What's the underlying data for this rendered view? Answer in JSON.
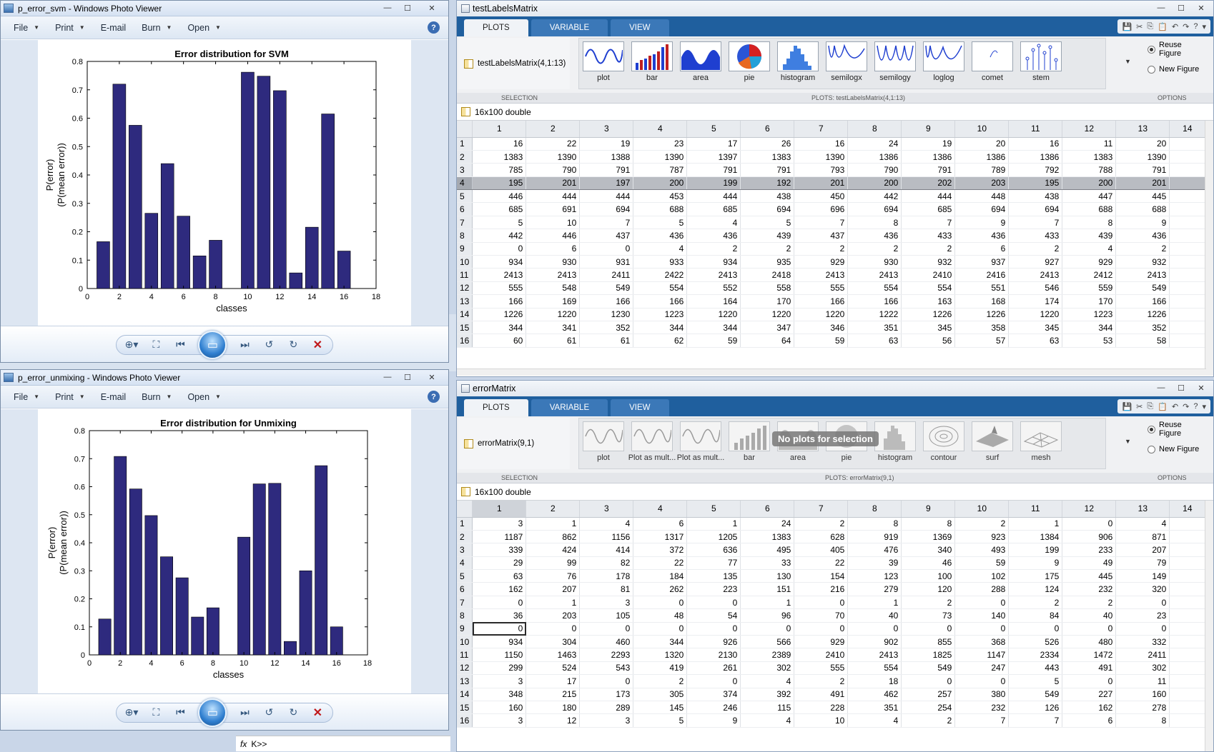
{
  "pv_top": {
    "title": "p_error_svm - Windows Photo Viewer",
    "menu": [
      "File",
      "Print",
      "E-mail",
      "Burn",
      "Open"
    ]
  },
  "pv_bottom": {
    "title": "p_error_unmixing - Windows Photo Viewer",
    "menu": [
      "File",
      "Print",
      "E-mail",
      "Burn",
      "Open"
    ]
  },
  "window_buttons": {
    "min": "—",
    "max": "☐",
    "close": "✕"
  },
  "help_label": "?",
  "chart_data": [
    {
      "type": "bar",
      "title": "Error distribution for SVM",
      "xlabel": "classes",
      "ylabel_line1": "P(error)",
      "ylabel_line2": "(P(mean error))",
      "xlim": [
        0,
        18
      ],
      "ylim": [
        0,
        0.8
      ],
      "xticks": [
        0,
        2,
        4,
        6,
        8,
        10,
        12,
        14,
        16,
        18
      ],
      "yticks": [
        0,
        0.1,
        0.2,
        0.3,
        0.4,
        0.5,
        0.6,
        0.7,
        0.8
      ],
      "x": [
        1,
        2,
        3,
        4,
        5,
        6,
        7,
        8,
        9,
        10,
        11,
        12,
        13,
        14,
        15,
        16
      ],
      "values": [
        0.165,
        0.72,
        0.575,
        0.265,
        0.44,
        0.255,
        0.115,
        0.17,
        0,
        0.762,
        0.748,
        0.697,
        0.055,
        0.216,
        0.615,
        0.132
      ],
      "bar_color": "#2e2a7e"
    },
    {
      "type": "bar",
      "title": "Error distribution for Unmixing",
      "xlabel": "classes",
      "ylabel_line1": "P(error)",
      "ylabel_line2": "(P(mean error))",
      "xlim": [
        0,
        18
      ],
      "ylim": [
        0,
        0.8
      ],
      "xticks": [
        0,
        2,
        4,
        6,
        8,
        10,
        12,
        14,
        16,
        18
      ],
      "yticks": [
        0,
        0.1,
        0.2,
        0.3,
        0.4,
        0.5,
        0.6,
        0.7,
        0.8
      ],
      "x": [
        1,
        2,
        3,
        4,
        5,
        6,
        7,
        8,
        9,
        10,
        11,
        12,
        13,
        14,
        15,
        16
      ],
      "values": [
        0.128,
        0.708,
        0.592,
        0.497,
        0.35,
        0.275,
        0.135,
        0.168,
        0,
        0.42,
        0.61,
        0.612,
        0.048,
        0.3,
        0.675,
        0.1
      ],
      "bar_color": "#2e2a7e"
    }
  ],
  "ml_top": {
    "title": "testLabelsMatrix",
    "tabs": [
      "PLOTS",
      "VARIABLE",
      "VIEW"
    ],
    "selection_text": "testLabelsMatrix(4,1:13)",
    "gallery": [
      "plot",
      "bar",
      "area",
      "pie",
      "histogram",
      "semilogx",
      "semilogy",
      "loglog",
      "comet",
      "stem"
    ],
    "options": [
      "Reuse Figure",
      "New Figure"
    ],
    "strip_labels": {
      "selection": "SELECTION",
      "plots": "PLOTS: testLabelsMatrix(4,1:13)",
      "options": "OPTIONS"
    },
    "size_text": "16x100 double",
    "col_headers": [
      "1",
      "2",
      "3",
      "4",
      "5",
      "6",
      "7",
      "8",
      "9",
      "10",
      "11",
      "12",
      "13",
      "14"
    ],
    "rows": [
      [
        "16",
        "22",
        "19",
        "23",
        "17",
        "26",
        "16",
        "24",
        "19",
        "20",
        "16",
        "11",
        "20",
        ""
      ],
      [
        "1383",
        "1390",
        "1388",
        "1390",
        "1397",
        "1383",
        "1390",
        "1386",
        "1386",
        "1386",
        "1386",
        "1383",
        "1390",
        ""
      ],
      [
        "785",
        "790",
        "791",
        "787",
        "791",
        "791",
        "793",
        "790",
        "791",
        "789",
        "792",
        "788",
        "791",
        ""
      ],
      [
        "195",
        "201",
        "197",
        "200",
        "199",
        "192",
        "201",
        "200",
        "202",
        "203",
        "195",
        "200",
        "201",
        ""
      ],
      [
        "446",
        "444",
        "444",
        "453",
        "444",
        "438",
        "450",
        "442",
        "444",
        "448",
        "438",
        "447",
        "445",
        ""
      ],
      [
        "685",
        "691",
        "694",
        "688",
        "685",
        "694",
        "696",
        "694",
        "685",
        "694",
        "694",
        "688",
        "688",
        ""
      ],
      [
        "5",
        "10",
        "7",
        "5",
        "4",
        "5",
        "7",
        "8",
        "7",
        "9",
        "7",
        "8",
        "9",
        ""
      ],
      [
        "442",
        "446",
        "437",
        "436",
        "436",
        "439",
        "437",
        "436",
        "433",
        "436",
        "433",
        "439",
        "436",
        ""
      ],
      [
        "0",
        "6",
        "0",
        "4",
        "2",
        "2",
        "2",
        "2",
        "2",
        "6",
        "2",
        "4",
        "2",
        ""
      ],
      [
        "934",
        "930",
        "931",
        "933",
        "934",
        "935",
        "929",
        "930",
        "932",
        "937",
        "927",
        "929",
        "932",
        ""
      ],
      [
        "2413",
        "2413",
        "2411",
        "2422",
        "2413",
        "2418",
        "2413",
        "2413",
        "2410",
        "2416",
        "2413",
        "2412",
        "2413",
        ""
      ],
      [
        "555",
        "548",
        "549",
        "554",
        "552",
        "558",
        "555",
        "554",
        "554",
        "551",
        "546",
        "559",
        "549",
        ""
      ],
      [
        "166",
        "169",
        "166",
        "166",
        "164",
        "170",
        "166",
        "166",
        "163",
        "168",
        "174",
        "170",
        "166",
        ""
      ],
      [
        "1226",
        "1220",
        "1230",
        "1223",
        "1220",
        "1220",
        "1220",
        "1222",
        "1226",
        "1226",
        "1220",
        "1223",
        "1226",
        ""
      ],
      [
        "344",
        "341",
        "352",
        "344",
        "344",
        "347",
        "346",
        "351",
        "345",
        "358",
        "345",
        "344",
        "352",
        ""
      ],
      [
        "60",
        "61",
        "61",
        "62",
        "59",
        "64",
        "59",
        "63",
        "56",
        "57",
        "63",
        "53",
        "58",
        ""
      ]
    ]
  },
  "ml_bottom": {
    "title": "errorMatrix",
    "tabs": [
      "PLOTS",
      "VARIABLE",
      "VIEW"
    ],
    "selection_text": "errorMatrix(9,1)",
    "gallery": [
      "plot",
      "Plot as mult...",
      "Plot as mult...",
      "bar",
      "area",
      "pie",
      "histogram",
      "contour",
      "surf",
      "mesh"
    ],
    "overlay": "No plots for selection",
    "options": [
      "Reuse Figure",
      "New Figure"
    ],
    "strip_labels": {
      "selection": "SELECTION",
      "plots": "PLOTS: errorMatrix(9,1)",
      "options": "OPTIONS"
    },
    "size_text": "16x100 double",
    "col_headers": [
      "1",
      "2",
      "3",
      "4",
      "5",
      "6",
      "7",
      "8",
      "9",
      "10",
      "11",
      "12",
      "13",
      "14"
    ],
    "rows": [
      [
        "3",
        "1",
        "4",
        "6",
        "1",
        "24",
        "2",
        "8",
        "8",
        "2",
        "1",
        "0",
        "4",
        ""
      ],
      [
        "1187",
        "862",
        "1156",
        "1317",
        "1205",
        "1383",
        "628",
        "919",
        "1369",
        "923",
        "1384",
        "906",
        "871",
        ""
      ],
      [
        "339",
        "424",
        "414",
        "372",
        "636",
        "495",
        "405",
        "476",
        "340",
        "493",
        "199",
        "233",
        "207",
        ""
      ],
      [
        "29",
        "99",
        "82",
        "22",
        "77",
        "33",
        "22",
        "39",
        "46",
        "59",
        "9",
        "49",
        "79",
        ""
      ],
      [
        "63",
        "76",
        "178",
        "184",
        "135",
        "130",
        "154",
        "123",
        "100",
        "102",
        "175",
        "445",
        "149",
        ""
      ],
      [
        "162",
        "207",
        "81",
        "262",
        "223",
        "151",
        "216",
        "279",
        "120",
        "288",
        "124",
        "232",
        "320",
        ""
      ],
      [
        "0",
        "1",
        "3",
        "0",
        "0",
        "1",
        "0",
        "1",
        "2",
        "0",
        "2",
        "2",
        "0",
        ""
      ],
      [
        "36",
        "203",
        "105",
        "48",
        "54",
        "96",
        "70",
        "40",
        "73",
        "140",
        "84",
        "40",
        "23",
        ""
      ],
      [
        "0",
        "0",
        "0",
        "0",
        "0",
        "0",
        "0",
        "0",
        "0",
        "0",
        "0",
        "0",
        "0",
        ""
      ],
      [
        "934",
        "304",
        "460",
        "344",
        "926",
        "566",
        "929",
        "902",
        "855",
        "368",
        "526",
        "480",
        "332",
        ""
      ],
      [
        "1150",
        "1463",
        "2293",
        "1320",
        "2130",
        "2389",
        "2410",
        "2413",
        "1825",
        "1147",
        "2334",
        "1472",
        "2411",
        ""
      ],
      [
        "299",
        "524",
        "543",
        "419",
        "261",
        "302",
        "555",
        "554",
        "549",
        "247",
        "443",
        "491",
        "302",
        ""
      ],
      [
        "3",
        "17",
        "0",
        "2",
        "0",
        "4",
        "2",
        "18",
        "0",
        "0",
        "5",
        "0",
        "11",
        ""
      ],
      [
        "348",
        "215",
        "173",
        "305",
        "374",
        "392",
        "491",
        "462",
        "257",
        "380",
        "549",
        "227",
        "160",
        ""
      ],
      [
        "160",
        "180",
        "289",
        "145",
        "246",
        "115",
        "228",
        "351",
        "254",
        "232",
        "126",
        "162",
        "278",
        ""
      ],
      [
        "3",
        "12",
        "3",
        "5",
        "9",
        "4",
        "10",
        "4",
        "2",
        "7",
        "7",
        "6",
        "8",
        ""
      ]
    ]
  },
  "command": {
    "fx": "fx",
    "prompt": "K>>"
  }
}
